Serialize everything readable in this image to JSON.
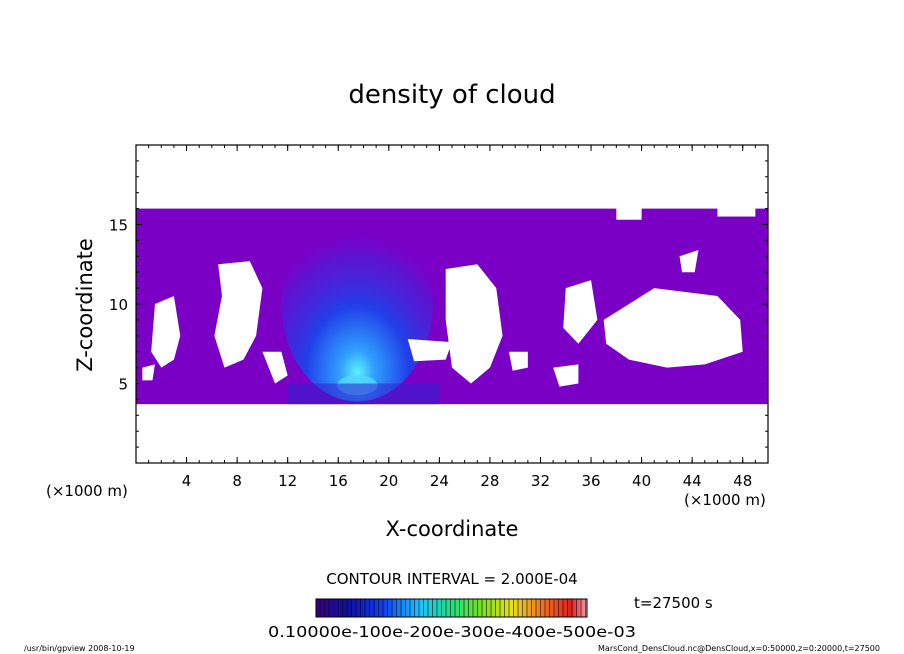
{
  "chart_data": {
    "type": "heatmap",
    "title": "density of cloud",
    "xlabel": "X-coordinate",
    "ylabel": "Z-coordinate",
    "x_unit": "(×1000 m)",
    "z_unit": "(×1000 m)",
    "xlim": [
      0,
      50
    ],
    "ylim": [
      0,
      20
    ],
    "x_ticks": [
      "4",
      "8",
      "12",
      "16",
      "20",
      "24",
      "28",
      "32",
      "36",
      "40",
      "44",
      "48"
    ],
    "y_ticks": [
      "5",
      "10",
      "15"
    ],
    "contour_interval": "CONTOUR INTERVAL = 2.000E-04",
    "time_label": "t=27500 s",
    "colorbar_labels": [
      "0.1000e-1",
      "0.1000e-2",
      "0.1000e-3",
      "0.1000e-4",
      "0.1000e-5",
      "0.1000e-3"
    ],
    "colorbar_label_text": "0.10000e-100e-200e-300e-400e-500e-03",
    "footer_left": "/usr/bin/gpview   2008-10-19",
    "footer_right": "MarsCond_DensCloud.nc@DensCloud,x=0:50000,z=0:20000,t=27500",
    "cloud_layer": {
      "z_bottom": 3.7,
      "z_top": 16.0
    },
    "core": {
      "x": 17.5,
      "z_base": 4.5,
      "z_top": 15.5
    },
    "colors": {
      "base": "#7a00c6",
      "core_low": "#3a20e0",
      "core_high": "#40d0ff"
    }
  }
}
